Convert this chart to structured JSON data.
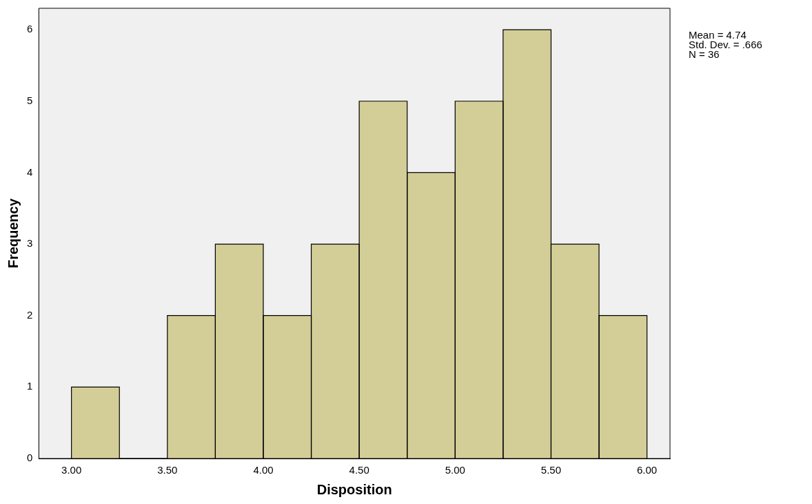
{
  "chart_data": {
    "type": "histogram",
    "xlabel": "Disposition",
    "ylabel": "Frequency",
    "bins": [
      3.0,
      3.25,
      3.5,
      3.75,
      4.0,
      4.25,
      4.5,
      4.75,
      5.0,
      5.25,
      5.5,
      5.75,
      6.0
    ],
    "values": [
      1,
      0,
      2,
      3,
      2,
      3,
      5,
      4,
      5,
      6,
      3,
      2
    ],
    "color": "#d3ce97",
    "xlim": [
      2.83,
      6.12
    ],
    "ylim": [
      0,
      6.3
    ],
    "xticks": [
      {
        "value": 3,
        "label": "3.00"
      },
      {
        "value": 3.5,
        "label": "3.50"
      },
      {
        "value": 4,
        "label": "4.00"
      },
      {
        "value": 4.5,
        "label": "4.50"
      },
      {
        "value": 5,
        "label": "5.00"
      },
      {
        "value": 5.5,
        "label": "5.50"
      },
      {
        "value": 6,
        "label": "6.00"
      }
    ],
    "yticks": [
      0,
      1,
      2,
      3,
      4,
      5,
      6
    ],
    "grid": false,
    "legend": false,
    "annotations": [
      "Mean = 4.74",
      "Std. Dev. = .666",
      "N = 36"
    ]
  }
}
